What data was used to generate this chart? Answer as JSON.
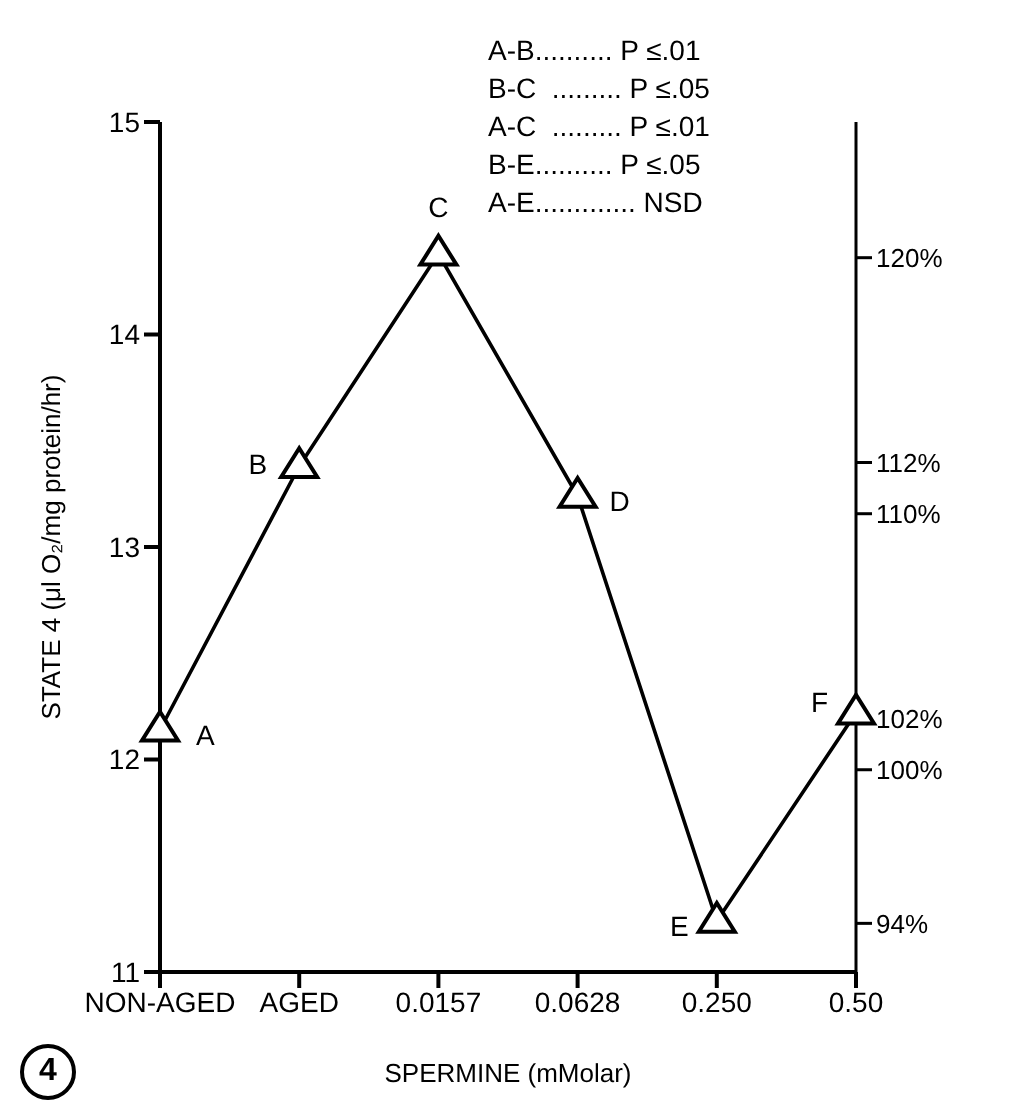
{
  "chart_data": {
    "type": "line",
    "xlabel": "SPERMINE (mMolar)",
    "ylabel": "STATE 4 (μl O₂/mg protein/hr)",
    "categories": [
      "NON-AGED",
      "AGED",
      "0.0157",
      "0.0628",
      "0.250",
      "0.50"
    ],
    "values": [
      12.14,
      13.38,
      14.38,
      13.24,
      11.24,
      12.22
    ],
    "value_labels": [
      "A",
      "B",
      "C",
      "D",
      "E",
      "F"
    ],
    "color": "#000000",
    "marker": "triangle",
    "line_style": "solid",
    "grid": false,
    "legend": false,
    "ylim": [
      11,
      15
    ],
    "yticks": [
      11,
      12,
      13,
      14,
      15
    ],
    "y2lim": [
      92.1,
      125.3
    ],
    "y2ticks": [
      {
        "value": 94,
        "label": "94%"
      },
      {
        "value": 100,
        "label": "100%"
      },
      {
        "value": 102,
        "label": "102%"
      },
      {
        "value": 110,
        "label": "110%"
      },
      {
        "value": 112,
        "label": "112%"
      },
      {
        "value": 120,
        "label": "120%"
      }
    ],
    "annotations": [
      "A-B.......... P ≤.01",
      "B-C  ......... P ≤.05",
      "A-C  ......... P ≤.01",
      "B-E.......... P ≤.05",
      "A-E............. NSD",
      "4"
    ]
  }
}
